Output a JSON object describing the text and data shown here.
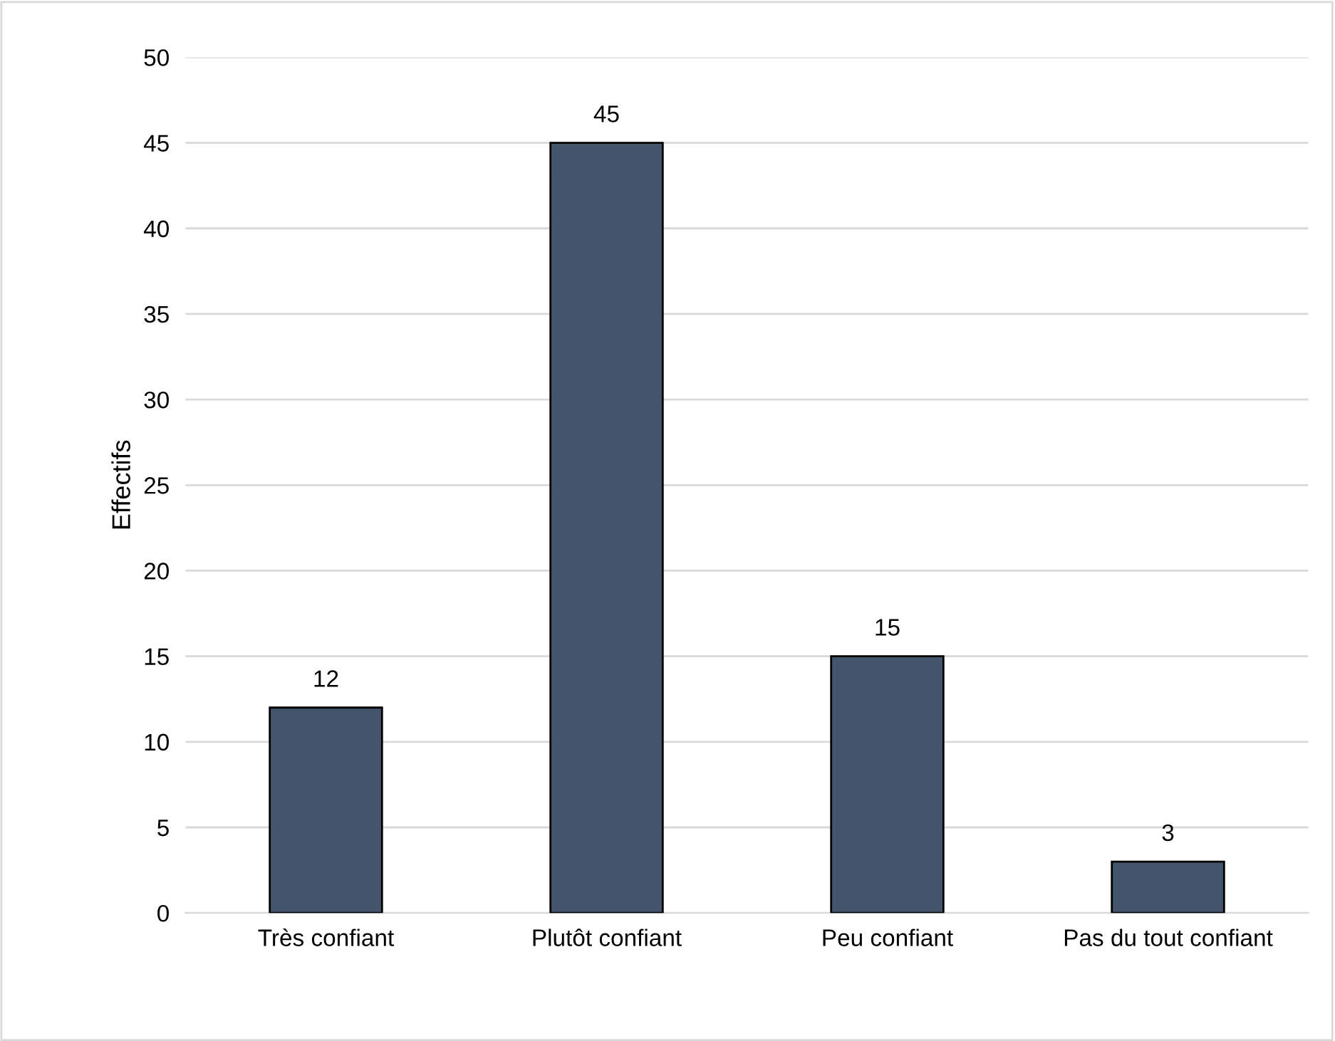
{
  "chart_data": {
    "type": "bar",
    "ylabel": "Effectifs",
    "categories": [
      "Très confiant",
      "Plutôt confiant",
      "Peu confiant",
      "Pas du tout confiant"
    ],
    "values": [
      12,
      45,
      15,
      3
    ],
    "color": "#44546a",
    "ylim": [
      0,
      50
    ],
    "yticks": [
      0,
      5,
      10,
      15,
      20,
      25,
      30,
      35,
      40,
      45,
      50
    ],
    "grid": "y",
    "data_labels": true
  }
}
